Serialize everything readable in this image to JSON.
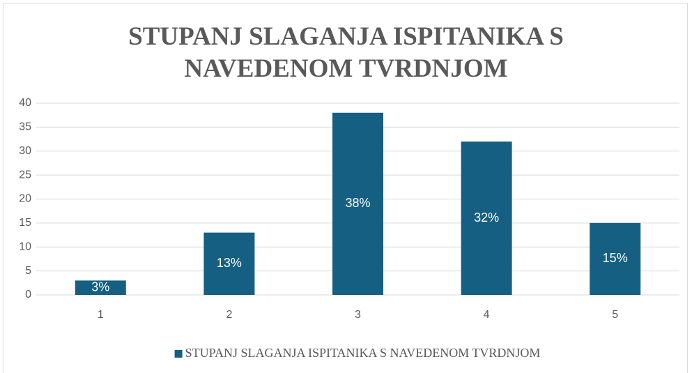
{
  "chart_data": {
    "type": "bar",
    "title": "STUPANJ SLAGANJA ISPITANIKA S NAVEDENOM TVRDNJOM",
    "categories": [
      "1",
      "2",
      "3",
      "4",
      "5"
    ],
    "series": [
      {
        "name": "STUPANJ SLAGANJA ISPITANIKA S NAVEDENOM TVRDNJOM",
        "color": "#155f82",
        "values": [
          3,
          13,
          38,
          32,
          15
        ],
        "value_labels": [
          "3%",
          "13%",
          "38%",
          "32%",
          "15%"
        ]
      }
    ],
    "ylim": [
      0,
      40
    ],
    "yticks": [
      0,
      5,
      10,
      15,
      20,
      25,
      30,
      35,
      40
    ],
    "grid": true,
    "legend": "bottom"
  }
}
